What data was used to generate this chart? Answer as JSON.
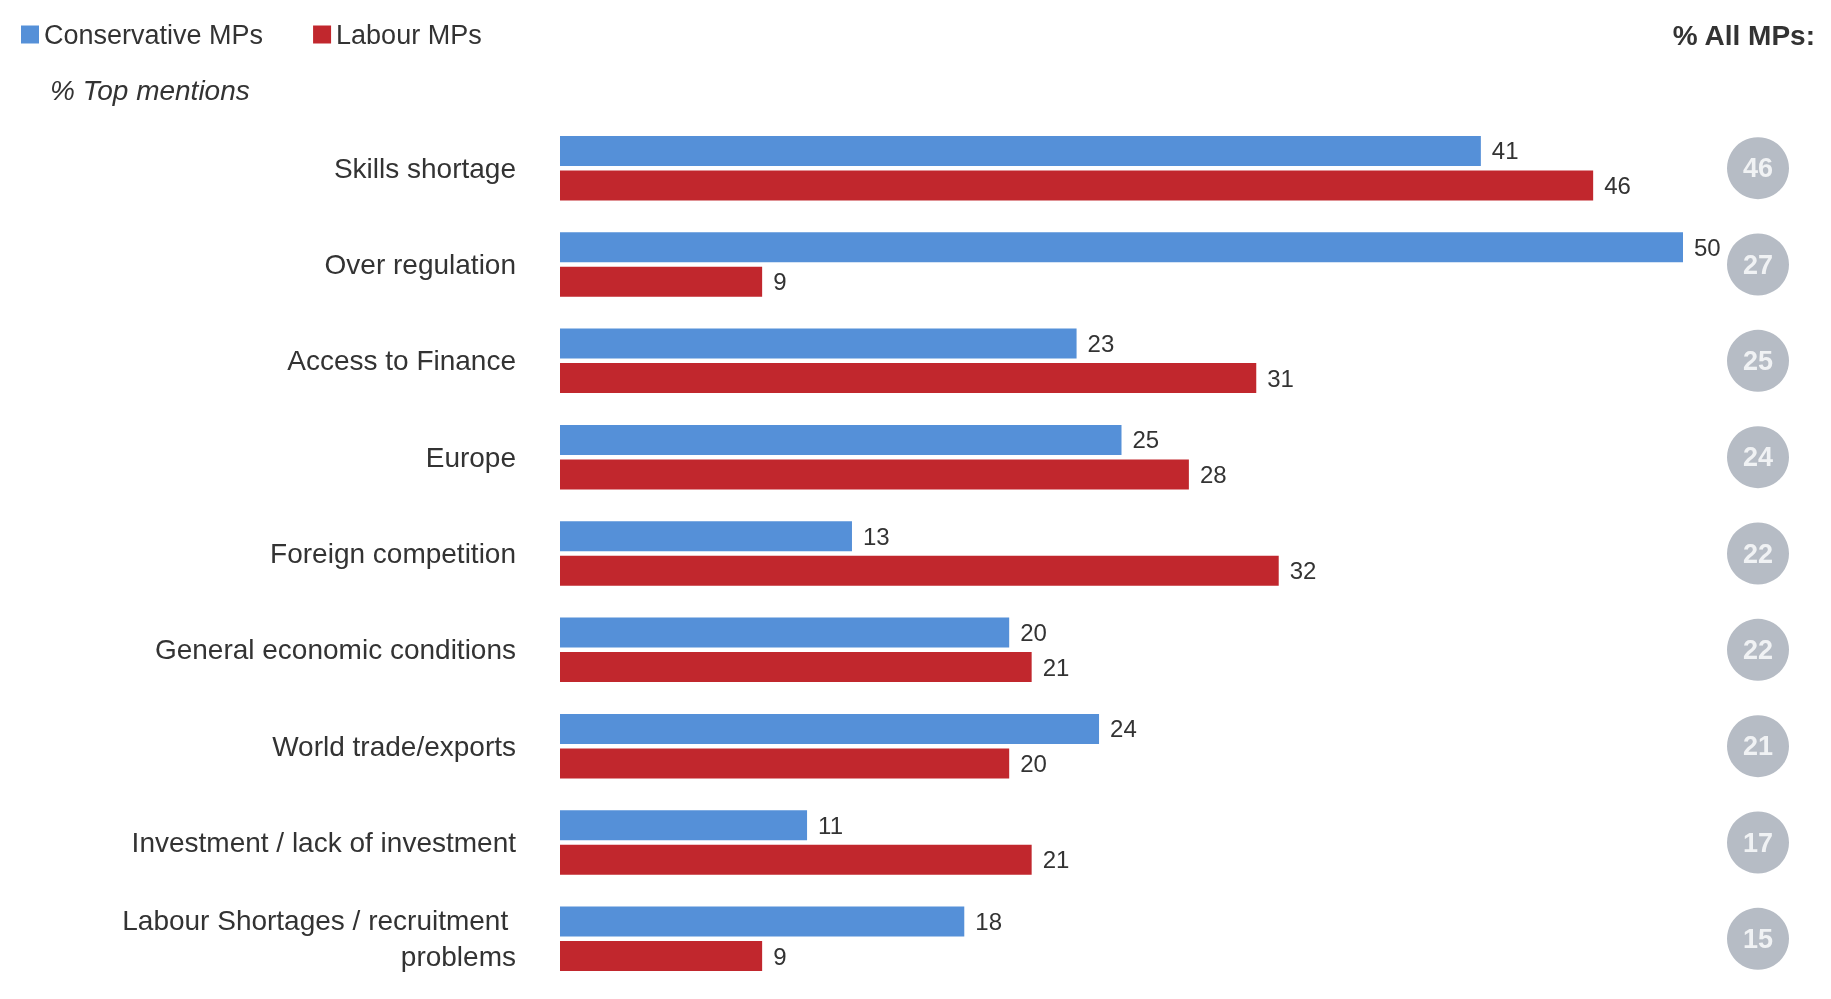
{
  "chart_data": {
    "type": "bar",
    "orientation": "horizontal",
    "ylabel": "% Top mentions",
    "categories": [
      "Skills shortage",
      "Over regulation",
      "Access to Finance",
      "Europe",
      "Foreign competition",
      "General economic conditions",
      "World trade/exports",
      "Investment / lack of investment",
      "Labour Shortages / recruitment problems"
    ],
    "series": [
      {
        "name": "Conservative MPs",
        "color": "#5590d8",
        "values": [
          41,
          50,
          23,
          25,
          13,
          20,
          24,
          11,
          18
        ]
      },
      {
        "name": "Labour MPs",
        "color": "#c1272d",
        "values": [
          46,
          9,
          31,
          28,
          32,
          21,
          20,
          21,
          9
        ]
      }
    ],
    "annotations": [
      "% All MPs:",
      "46",
      "27",
      "25",
      "24",
      "22",
      "22",
      "21",
      "17",
      "15"
    ],
    "data_labels": true,
    "legend": "top left",
    "tick_labels": "y"
  }
}
